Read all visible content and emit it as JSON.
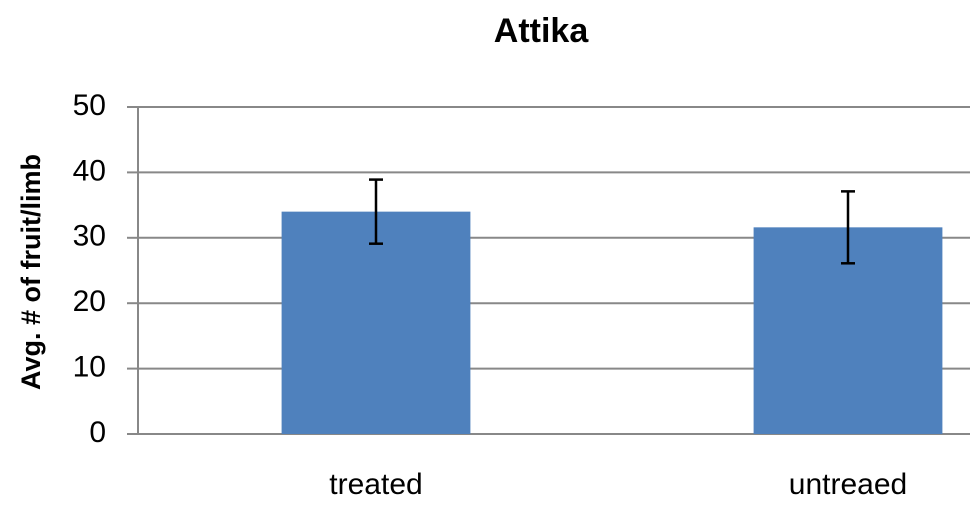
{
  "chart_data": {
    "type": "bar",
    "title": "Attika",
    "y_label": "Avg. # of fruit/limb",
    "categories": [
      "treated",
      "untreaed"
    ],
    "values": [
      34,
      31.6
    ],
    "errors": [
      4.9,
      5.5
    ],
    "color": "#4f81bd",
    "ylim": [
      0,
      50
    ],
    "yticks": [
      0,
      10,
      20,
      30,
      40,
      50
    ],
    "grid": true
  }
}
